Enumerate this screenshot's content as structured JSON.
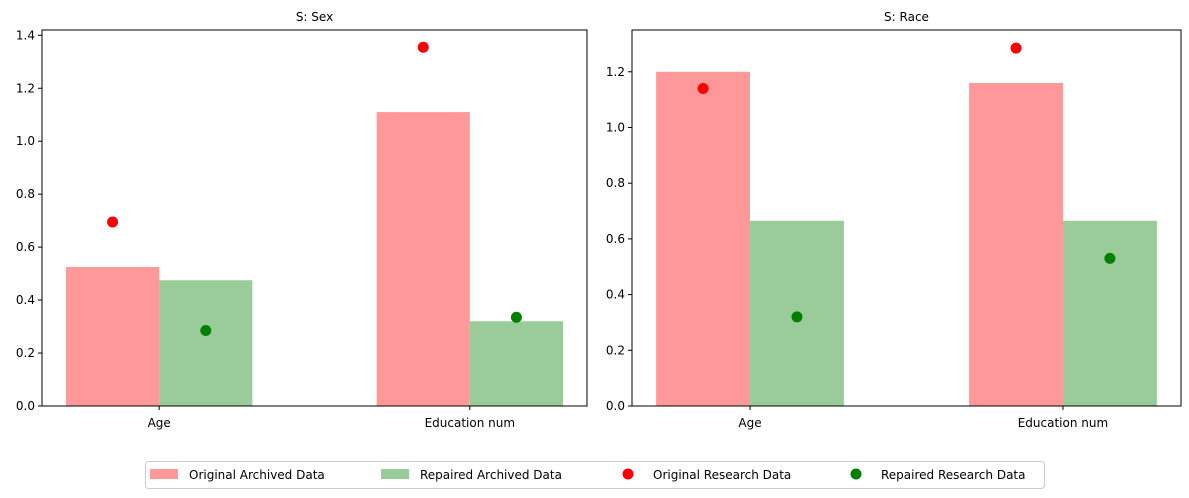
{
  "colors": {
    "original_bar": "#ff9999",
    "repaired_bar": "#99cc99",
    "original_point": "#ff0000",
    "repaired_point": "#008000",
    "axis": "#000000"
  },
  "legend": {
    "placement": "bottom-center",
    "entries": [
      {
        "label": "Original Archived Data",
        "kind": "bar",
        "color_key": "original_bar"
      },
      {
        "label": "Repaired Archived Data",
        "kind": "bar",
        "color_key": "repaired_bar"
      },
      {
        "label": "Original Research Data",
        "kind": "point",
        "color_key": "original_point"
      },
      {
        "label": "Repaired Research Data",
        "kind": "point",
        "color_key": "repaired_point"
      }
    ]
  },
  "chart_data": [
    {
      "type": "bar",
      "title": "S: Sex",
      "xlabel": "",
      "ylabel": "",
      "categories": [
        "Age",
        "Education num"
      ],
      "ylim": [
        0,
        1.42
      ],
      "yticks": [
        0.0,
        0.2,
        0.4,
        0.6,
        0.8,
        1.0,
        1.2,
        1.4
      ],
      "tick_labels": [
        "0.0",
        "0.2",
        "0.4",
        "0.6",
        "0.8",
        "1.0",
        "1.2",
        "1.4"
      ],
      "grid": false,
      "series": [
        {
          "name": "Original Archived Data",
          "kind": "bar",
          "values": [
            0.525,
            1.11
          ]
        },
        {
          "name": "Repaired Archived Data",
          "kind": "bar",
          "values": [
            0.475,
            0.32
          ]
        },
        {
          "name": "Original Research Data",
          "kind": "point",
          "values": [
            0.695,
            1.355
          ]
        },
        {
          "name": "Repaired Research Data",
          "kind": "point",
          "values": [
            0.285,
            0.335
          ]
        }
      ]
    },
    {
      "type": "bar",
      "title": "S: Race",
      "xlabel": "",
      "ylabel": "",
      "categories": [
        "Age",
        "Education num"
      ],
      "ylim": [
        0,
        1.35
      ],
      "yticks": [
        0.0,
        0.2,
        0.4,
        0.6,
        0.8,
        1.0,
        1.2
      ],
      "tick_labels": [
        "0.0",
        "0.2",
        "0.4",
        "0.6",
        "0.8",
        "1.0",
        "1.2"
      ],
      "grid": false,
      "series": [
        {
          "name": "Original Archived Data",
          "kind": "bar",
          "values": [
            1.2,
            1.16
          ]
        },
        {
          "name": "Repaired Archived Data",
          "kind": "bar",
          "values": [
            0.665,
            0.665
          ]
        },
        {
          "name": "Original Research Data",
          "kind": "point",
          "values": [
            1.14,
            1.285
          ]
        },
        {
          "name": "Repaired Research Data",
          "kind": "point",
          "values": [
            0.32,
            0.53
          ]
        }
      ]
    }
  ]
}
